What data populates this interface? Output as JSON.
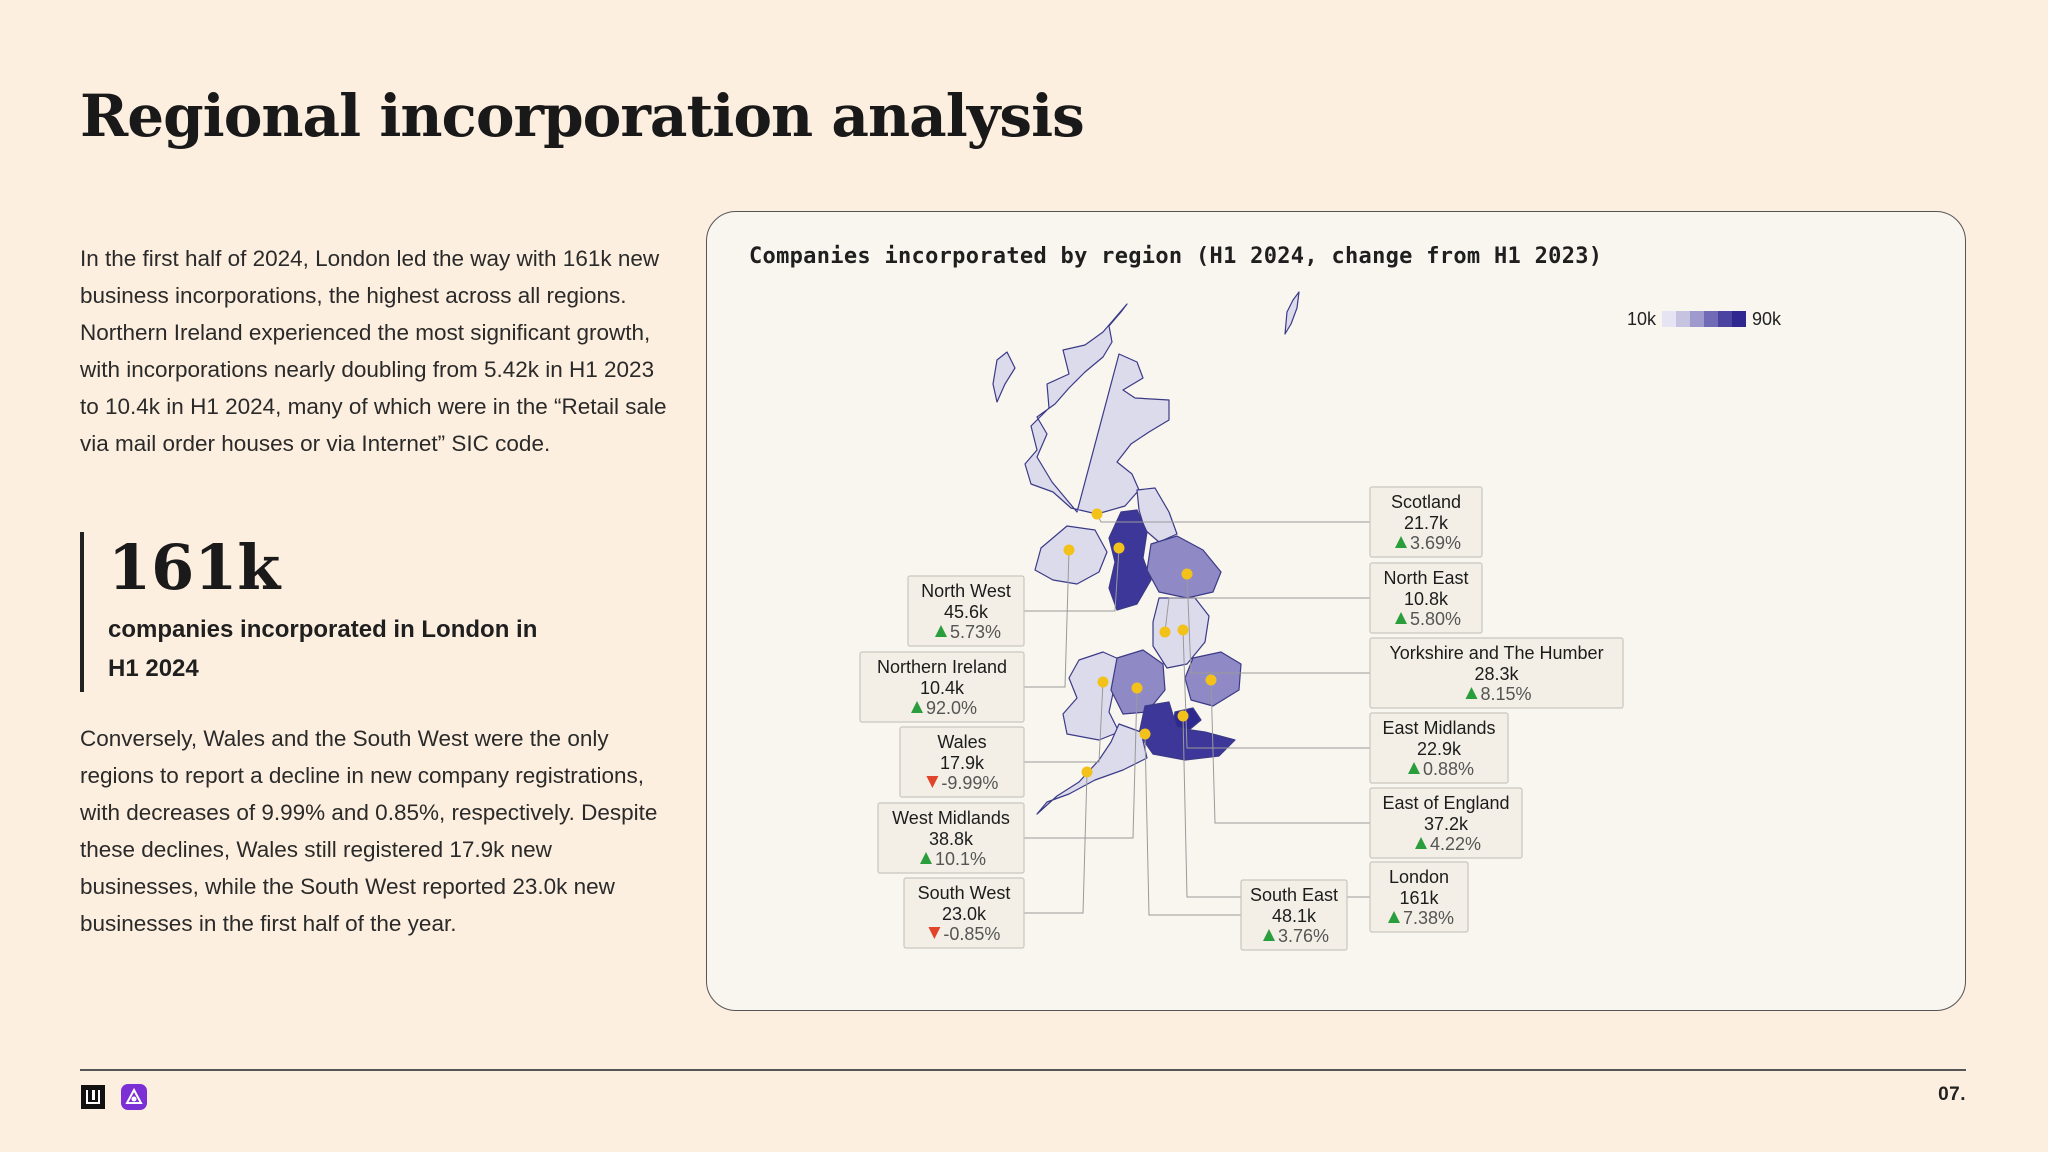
{
  "header": {
    "title": "Regional incorporation analysis"
  },
  "intro": {
    "paragraph1": "In the first half of 2024, London led the way with 161k new business incorporations, the highest across all regions. Northern Ireland experienced the most significant growth, with incorporations nearly doubling from 5.42k in H1 2023 to 10.4k in H1 2024, many of which were in the “Retail sale via mail order houses or via Internet” SIC code.",
    "stat_value": "161k",
    "stat_caption": "companies incorporated in London in H1 2024",
    "paragraph2": "Conversely, Wales and the South West were the only regions to report a decline in new company registrations, with decreases of 9.99% and 0.85%, respectively. Despite these declines, Wales still registered 17.9k new businesses, while the South West reported 23.0k new businesses in the first half of the year."
  },
  "chart_data": {
    "type": "choropleth",
    "title": "Companies incorporated by region (H1 2024, change from H1 2023)",
    "legend": {
      "min_label": "10k",
      "max_label": "90k",
      "colors": [
        "#e6e4f2",
        "#c6c3e0",
        "#9f9acd",
        "#716bb5",
        "#4a43a0",
        "#2e2890"
      ]
    },
    "regions": [
      {
        "name": "Scotland",
        "value_label": "21.7k",
        "value": 21.7,
        "change_label": "3.69%",
        "change": 3.69,
        "direction": "up"
      },
      {
        "name": "North East",
        "value_label": "10.8k",
        "value": 10.8,
        "change_label": "5.80%",
        "change": 5.8,
        "direction": "up"
      },
      {
        "name": "Yorkshire and The Humber",
        "value_label": "28.3k",
        "value": 28.3,
        "change_label": "8.15%",
        "change": 8.15,
        "direction": "up"
      },
      {
        "name": "East Midlands",
        "value_label": "22.9k",
        "value": 22.9,
        "change_label": "0.88%",
        "change": 0.88,
        "direction": "up"
      },
      {
        "name": "East of England",
        "value_label": "37.2k",
        "value": 37.2,
        "change_label": "4.22%",
        "change": 4.22,
        "direction": "up"
      },
      {
        "name": "London",
        "value_label": "161k",
        "value": 161,
        "change_label": "7.38%",
        "change": 7.38,
        "direction": "up"
      },
      {
        "name": "South East",
        "value_label": "48.1k",
        "value": 48.1,
        "change_label": "3.76%",
        "change": 3.76,
        "direction": "up"
      },
      {
        "name": "South West",
        "value_label": "23.0k",
        "value": 23.0,
        "change_label": "-0.85%",
        "change": -0.85,
        "direction": "down"
      },
      {
        "name": "West Midlands",
        "value_label": "38.8k",
        "value": 38.8,
        "change_label": "10.1%",
        "change": 10.1,
        "direction": "up"
      },
      {
        "name": "Wales",
        "value_label": "17.9k",
        "value": 17.9,
        "change_label": "-9.99%",
        "change": -9.99,
        "direction": "down"
      },
      {
        "name": "Northern Ireland",
        "value_label": "10.4k",
        "value": 10.4,
        "change_label": "92.0%",
        "change": 92.0,
        "direction": "up"
      },
      {
        "name": "North West",
        "value_label": "45.6k",
        "value": 45.6,
        "change_label": "5.73%",
        "change": 5.73,
        "direction": "up"
      }
    ],
    "colors": {
      "up": "#2a9d3c",
      "down": "#e0442a",
      "marker": "#f2c21b"
    }
  },
  "footer": {
    "page_number": "07."
  }
}
